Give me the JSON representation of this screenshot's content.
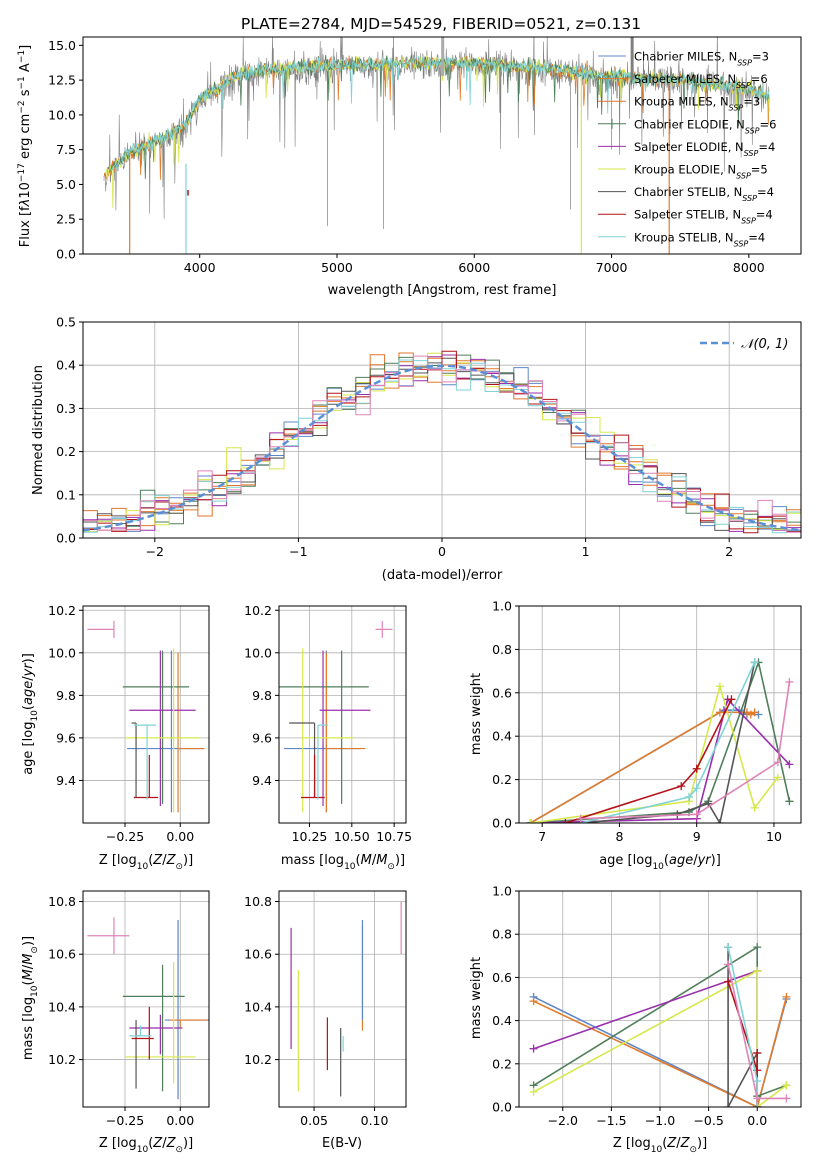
{
  "figure": {
    "title": "PLATE=2784, MJD=54529, FIBERID=0521, z=0.131"
  },
  "models": [
    {
      "id": "chab_miles",
      "color": "#5f87c8"
    },
    {
      "id": "salp_miles",
      "color": "#e07c2c"
    },
    {
      "id": "krou_miles",
      "color": "#e0742c"
    },
    {
      "id": "chab_elodie",
      "color": "#4f7f5a"
    },
    {
      "id": "salp_elodie",
      "color": "#9b2fae"
    },
    {
      "id": "krou_elodie",
      "color": "#d7e84b"
    },
    {
      "id": "chab_stelib",
      "color": "#555555"
    },
    {
      "id": "salp_stelib",
      "color": "#b21218"
    },
    {
      "id": "krou_stelib",
      "color": "#7fd3d6"
    }
  ],
  "pink_color": "#e084b8",
  "gauss_color": "#5b8fd6",
  "chart_data": [
    {
      "id": "spectrum",
      "type": "line",
      "title": "PLATE=2784, MJD=54529, FIBERID=0521, z=0.131",
      "xlabel": "wavelength [Angstrom, rest frame]",
      "ylabel": "Flux [f_λ 10^-17 erg cm^-2 s^-1 A^-1]",
      "xlim": [
        3150,
        8380
      ],
      "ylim": [
        0,
        15.6
      ],
      "xticks": [
        4000,
        5000,
        6000,
        7000,
        8000
      ],
      "yticks": [
        0.0,
        2.5,
        5.0,
        7.5,
        10.0,
        12.5,
        15.0
      ],
      "continuum": [
        [
          3300,
          5.5
        ],
        [
          3500,
          7.2
        ],
        [
          3700,
          8.0
        ],
        [
          3900,
          9.2
        ],
        [
          4000,
          11.0
        ],
        [
          4300,
          12.8
        ],
        [
          4600,
          13.2
        ],
        [
          5000,
          13.4
        ],
        [
          5500,
          13.6
        ],
        [
          6000,
          13.6
        ],
        [
          6500,
          13.2
        ],
        [
          7000,
          12.6
        ],
        [
          7500,
          12.4
        ],
        [
          8000,
          11.7
        ],
        [
          8150,
          11.2
        ]
      ],
      "legend": [
        {
          "label": "Chabrier MILES, N",
          "sub": "SSP",
          "val": "=3"
        },
        {
          "label": "Salpeter MILES, N",
          "sub": "SSP",
          "val": "=6"
        },
        {
          "label": "Kroupa MILES, N",
          "sub": "SSP",
          "val": "=3"
        },
        {
          "label": "Chabrier ELODIE, N",
          "sub": "SSP",
          "val": "=6"
        },
        {
          "label": "Salpeter ELODIE, N",
          "sub": "SSP",
          "val": "=4"
        },
        {
          "label": "Kroupa ELODIE, N",
          "sub": "SSP",
          "val": "=5"
        },
        {
          "label": "Chabrier STELIB, N",
          "sub": "SSP",
          "val": "=4"
        },
        {
          "label": "Salpeter STELIB, N",
          "sub": "SSP",
          "val": "=4"
        },
        {
          "label": "Kroupa STELIB, N",
          "sub": "SSP",
          "val": "=4"
        }
      ]
    },
    {
      "id": "residuals",
      "type": "histogram",
      "xlabel": "(data-model)/error",
      "ylabel": "Normed distribution",
      "xlim": [
        -2.5,
        2.5
      ],
      "ylim": [
        0,
        0.5
      ],
      "xticks": [
        -2,
        -1,
        0,
        1,
        2
      ],
      "xticklabels": [
        "−2",
        "−1",
        "0",
        "1",
        "2"
      ],
      "yticks": [
        0.0,
        0.1,
        0.2,
        0.3,
        0.4,
        0.5
      ],
      "legend": "𝒩(0, 1)"
    },
    {
      "id": "age_vs_Z",
      "type": "errorbar",
      "xlabel": "Z [log10(Z/Z⊙)]",
      "ylabel": "age  [log10(age/yr)]",
      "xlim": [
        -0.44,
        0.13
      ],
      "ylim": [
        9.2,
        10.22
      ],
      "xticks": [
        -0.25,
        0.0
      ],
      "xticklabels": [
        "−0.25",
        "0.00"
      ],
      "yticks": [
        9.4,
        9.6,
        9.8,
        10.0,
        10.2
      ],
      "points": [
        {
          "m": "pink",
          "x": -0.3,
          "xe": [
            0.12,
            0.0
          ],
          "y": 10.11,
          "ye": [
            0.04,
            0.04
          ]
        },
        {
          "m": "chab_miles",
          "x": -0.04,
          "xe": [
            0.2,
            0.14
          ],
          "y": 9.55,
          "ye": [
            0.3,
            0.46
          ]
        },
        {
          "m": "salp_miles",
          "x": -0.01,
          "xe": [
            0.0,
            0.12
          ],
          "y": 9.55,
          "ye": [
            0.3,
            0.45
          ]
        },
        {
          "m": "chab_elodie",
          "x": -0.08,
          "xe": [
            0.18,
            0.12
          ],
          "y": 9.84,
          "ye": [
            0.55,
            0.17
          ]
        },
        {
          "m": "salp_elodie",
          "x": -0.09,
          "xe": [
            0.14,
            0.16
          ],
          "y": 9.73,
          "ye": [
            0.45,
            0.28
          ]
        },
        {
          "m": "krou_elodie",
          "x": -0.03,
          "xe": [
            0.22,
            0.12
          ],
          "y": 9.6,
          "ye": [
            0.35,
            0.42
          ]
        },
        {
          "m": "chab_stelib",
          "x": -0.2,
          "xe": [
            0.02,
            0.0
          ],
          "y": 9.67,
          "ye": [
            0.35,
            0.0
          ]
        },
        {
          "m": "salp_stelib",
          "x": -0.14,
          "xe": [
            0.07,
            0.04
          ],
          "y": 9.32,
          "ye": [
            0.0,
            0.2
          ]
        },
        {
          "m": "krou_stelib",
          "x": -0.15,
          "xe": [
            0.06,
            0.04
          ],
          "y": 9.66,
          "ye": [
            0.35,
            0.0
          ]
        }
      ]
    },
    {
      "id": "age_vs_mass",
      "type": "errorbar",
      "xlabel": "mass [log10(M/M⊙)]",
      "ylabel": "",
      "xlim": [
        10.07,
        10.82
      ],
      "ylim": [
        9.2,
        10.22
      ],
      "xticks": [
        10.25,
        10.5,
        10.75
      ],
      "xticklabels": [
        "10.25",
        "10.50",
        "10.75"
      ],
      "yticks": [
        9.4,
        9.6,
        9.8,
        10.0,
        10.2
      ],
      "points": [
        {
          "m": "pink",
          "x": 10.68,
          "xe": [
            0.04,
            0.06
          ],
          "y": 10.11,
          "ye": [
            0.04,
            0.04
          ]
        },
        {
          "m": "chab_miles",
          "x": 10.35,
          "xe": [
            0.25,
            0.2
          ],
          "y": 9.55,
          "ye": [
            0.3,
            0.46
          ]
        },
        {
          "m": "salp_miles",
          "x": 10.35,
          "xe": [
            0.0,
            0.23
          ],
          "y": 9.55,
          "ye": [
            0.3,
            0.45
          ]
        },
        {
          "m": "chab_elodie",
          "x": 10.44,
          "xe": [
            0.4,
            0.16
          ],
          "y": 9.84,
          "ye": [
            0.55,
            0.17
          ]
        },
        {
          "m": "salp_elodie",
          "x": 10.33,
          "xe": [
            0.02,
            0.28
          ],
          "y": 9.73,
          "ye": [
            0.45,
            0.28
          ]
        },
        {
          "m": "krou_elodie",
          "x": 10.21,
          "xe": [
            0.0,
            0.3
          ],
          "y": 9.6,
          "ye": [
            0.35,
            0.42
          ]
        },
        {
          "m": "chab_stelib",
          "x": 10.28,
          "xe": [
            0.15,
            0.0
          ],
          "y": 9.67,
          "ye": [
            0.35,
            0.0
          ]
        },
        {
          "m": "salp_stelib",
          "x": 10.28,
          "xe": [
            0.08,
            0.06
          ],
          "y": 9.32,
          "ye": [
            0.0,
            0.2
          ]
        },
        {
          "m": "krou_stelib",
          "x": 10.3,
          "xe": [
            0.0,
            0.06
          ],
          "y": 9.66,
          "ye": [
            0.35,
            0.0
          ]
        }
      ]
    },
    {
      "id": "weight_vs_age",
      "type": "line",
      "xlabel": "age  [log10(age/yr)]",
      "ylabel": "mass weight",
      "xlim": [
        6.7,
        10.35
      ],
      "ylim": [
        0,
        1.0
      ],
      "xticks": [
        7,
        8,
        9,
        10
      ],
      "xticklabels": [
        "7",
        "8",
        "9",
        "10"
      ],
      "yticks": [
        0.0,
        0.2,
        0.4,
        0.6,
        0.8,
        1.0
      ],
      "series": [
        {
          "m": "chab_miles",
          "x": [
            6.85,
            9.35,
            9.55,
            9.65,
            9.8
          ],
          "y": [
            0.0,
            0.52,
            0.52,
            0.5,
            0.5
          ]
        },
        {
          "m": "salp_miles",
          "x": [
            6.85,
            9.3,
            9.65,
            9.7,
            9.75
          ],
          "y": [
            0.0,
            0.51,
            0.51,
            0.5,
            0.51
          ]
        },
        {
          "m": "chab_elodie",
          "x": [
            6.85,
            8.9,
            9.15,
            9.8,
            10.2
          ],
          "y": [
            0.0,
            0.05,
            0.1,
            0.74,
            0.1
          ]
        },
        {
          "m": "salp_elodie",
          "x": [
            6.85,
            9.0,
            9.4,
            10.2
          ],
          "y": [
            0.0,
            0.02,
            0.57,
            0.27
          ]
        },
        {
          "m": "krou_elodie",
          "x": [
            6.85,
            8.9,
            9.3,
            9.75,
            10.05
          ],
          "y": [
            0.0,
            0.1,
            0.63,
            0.07,
            0.21
          ]
        },
        {
          "m": "chab_stelib",
          "x": [
            7.5,
            8.75,
            9.15,
            9.3,
            9.75
          ],
          "y": [
            0.0,
            0.04,
            0.09,
            0.0,
            0.74
          ]
        },
        {
          "m": "salp_stelib",
          "x": [
            7.3,
            8.8,
            9.0,
            9.45
          ],
          "y": [
            0.0,
            0.17,
            0.25,
            0.57
          ]
        },
        {
          "m": "krou_stelib",
          "x": [
            7.5,
            8.9,
            9.0,
            9.75
          ],
          "y": [
            0.0,
            0.12,
            0.16,
            0.74
          ]
        },
        {
          "m": "pink",
          "x": [
            7.5,
            9.0,
            10.05,
            10.2
          ],
          "y": [
            0.02,
            0.04,
            0.28,
            0.65
          ]
        }
      ]
    },
    {
      "id": "mass_vs_Z",
      "type": "errorbar",
      "xlabel": "Z [log10(Z/Z⊙)]",
      "ylabel": "mass [log10(M/M⊙)]",
      "xlim": [
        -0.44,
        0.13
      ],
      "ylim": [
        10.02,
        10.84
      ],
      "xticks": [
        -0.25,
        0.0
      ],
      "xticklabels": [
        "−0.25",
        "0.00"
      ],
      "yticks": [
        10.2,
        10.4,
        10.6,
        10.8
      ],
      "points": [
        {
          "m": "pink",
          "x": -0.3,
          "xe": [
            0.12,
            0.07
          ],
          "y": 10.67,
          "ye": [
            0.07,
            0.07
          ]
        },
        {
          "m": "chab_miles",
          "x": -0.01,
          "xe": [
            0.06,
            0.14
          ],
          "y": 10.35,
          "ye": [
            0.3,
            0.38
          ]
        },
        {
          "m": "salp_miles",
          "x": 0.0,
          "xe": [
            0.05,
            0.12
          ],
          "y": 10.35,
          "ye": [
            0.03,
            0.0
          ]
        },
        {
          "m": "chab_elodie",
          "x": -0.08,
          "xe": [
            0.18,
            0.1
          ],
          "y": 10.44,
          "ye": [
            0.36,
            0.12
          ]
        },
        {
          "m": "salp_elodie",
          "x": -0.09,
          "xe": [
            0.14,
            0.1
          ],
          "y": 10.32,
          "ye": [
            0.1,
            0.05
          ]
        },
        {
          "m": "krou_elodie",
          "x": -0.03,
          "xe": [
            0.22,
            0.1
          ],
          "y": 10.21,
          "ye": [
            0.1,
            0.36
          ]
        },
        {
          "m": "chab_stelib",
          "x": -0.2,
          "xe": [
            0.0,
            0.02
          ],
          "y": 10.29,
          "ye": [
            0.2,
            0.06
          ]
        },
        {
          "m": "salp_stelib",
          "x": -0.14,
          "xe": [
            0.08,
            0.02
          ],
          "y": 10.28,
          "ye": [
            0.08,
            0.12
          ]
        },
        {
          "m": "krou_stelib",
          "x": -0.18,
          "xe": [
            0.05,
            0.05
          ],
          "y": 10.29,
          "ye": [
            0.0,
            0.04
          ]
        }
      ]
    },
    {
      "id": "mass_vs_ebv",
      "type": "errorbar",
      "xlabel": "E(B-V)",
      "ylabel": "",
      "xlim": [
        0.021,
        0.126
      ],
      "ylim": [
        10.02,
        10.84
      ],
      "xticks": [
        0.05,
        0.1
      ],
      "xticklabels": [
        "0.05",
        "0.10"
      ],
      "yticks": [
        10.2,
        10.4,
        10.6,
        10.8
      ],
      "points": [
        {
          "m": "pink",
          "x": 0.122,
          "ye": [
            0.06,
            0.14
          ],
          "y": 10.66
        },
        {
          "m": "salp_elodie",
          "x": 0.031,
          "ye": [
            0.2,
            0.26
          ],
          "y": 10.44
        },
        {
          "m": "krou_elodie",
          "x": 0.037,
          "ye": [
            0.26,
            0.2
          ],
          "y": 10.34
        },
        {
          "m": "salp_stelib",
          "x": 0.061,
          "ye": [
            0.12,
            0.08
          ],
          "y": 10.28
        },
        {
          "m": "chab_stelib",
          "x": 0.072,
          "ye": [
            0.2,
            0.06
          ],
          "y": 10.26
        },
        {
          "m": "krou_stelib",
          "x": 0.074,
          "ye": [
            0.06,
            0.0
          ],
          "y": 10.29
        },
        {
          "m": "salp_miles",
          "x": 0.09,
          "ye": [
            0.04,
            0.36
          ],
          "y": 10.35
        },
        {
          "m": "chab_miles",
          "x": 0.09,
          "ye": [
            0.0,
            0.38
          ],
          "y": 10.35
        }
      ]
    },
    {
      "id": "weight_vs_Z",
      "type": "line",
      "xlabel": "Z [log10(Z/Z⊙)]",
      "ylabel": "mass weight",
      "xlim": [
        -2.45,
        0.45
      ],
      "ylim": [
        0,
        1.0
      ],
      "xticks": [
        -2.0,
        -1.5,
        -1.0,
        -0.5,
        0.0
      ],
      "xticklabels": [
        "−2.0",
        "−1.5",
        "−1.0",
        "−0.5",
        "0.0"
      ],
      "yticks": [
        0.0,
        0.2,
        0.4,
        0.6,
        0.8,
        1.0
      ],
      "series": [
        {
          "m": "chab_miles",
          "x": [
            -2.3,
            0.0,
            0.0,
            0.3
          ],
          "y": [
            0.51,
            0.0,
            0.0,
            0.5
          ]
        },
        {
          "m": "salp_miles",
          "x": [
            -2.3,
            0.0,
            0.0,
            0.3
          ],
          "y": [
            0.49,
            0.0,
            0.0,
            0.51
          ]
        },
        {
          "m": "chab_elodie",
          "x": [
            -2.3,
            0.0,
            0.0,
            0.3
          ],
          "y": [
            0.1,
            0.74,
            0.05,
            0.1
          ]
        },
        {
          "m": "salp_elodie",
          "x": [
            -2.3,
            0.0,
            0.0
          ],
          "y": [
            0.27,
            0.63,
            0.0
          ]
        },
        {
          "m": "krou_elodie",
          "x": [
            -2.3,
            0.0,
            0.0,
            0.3
          ],
          "y": [
            0.07,
            0.63,
            0.0,
            0.1
          ]
        },
        {
          "m": "chab_stelib",
          "x": [
            -0.3,
            -0.3,
            0.0,
            0.0
          ],
          "y": [
            0.74,
            0.0,
            0.25,
            0.0
          ]
        },
        {
          "m": "salp_stelib",
          "x": [
            -0.3,
            0.0,
            0.0,
            0.0
          ],
          "y": [
            0.58,
            0.17,
            0.25,
            0.0
          ]
        },
        {
          "m": "krou_stelib",
          "x": [
            -0.3,
            0.0,
            0.0
          ],
          "y": [
            0.74,
            0.12,
            0.0
          ]
        },
        {
          "m": "pink",
          "x": [
            -0.3,
            0.0,
            0.3
          ],
          "y": [
            0.66,
            0.04,
            0.04
          ]
        }
      ]
    }
  ]
}
